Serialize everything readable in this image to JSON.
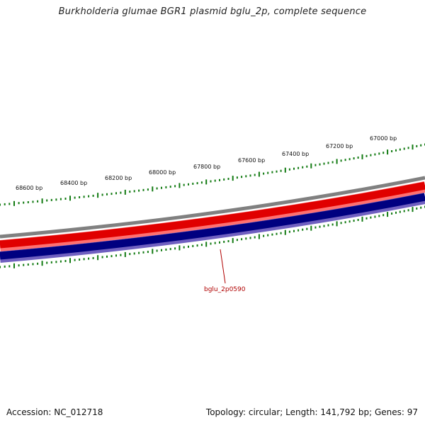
{
  "title": "Burkholderia glumae BGR1 plasmid bglu_2p, complete sequence",
  "ruler_labels": [
    "68600 bp",
    "68400 bp",
    "68200 bp",
    "68000 bp",
    "67800 bp",
    "67600 bp",
    "67400 bp",
    "67200 bp",
    "67000 bp"
  ],
  "gene_label": "bglu_2p0590",
  "footer": {
    "accession": "Accession: NC_012718",
    "info": "Topology: circular; Length: 141,792 bp; Genes: 97"
  },
  "colors": {
    "backbone": "#808080",
    "forward_strand": "#e00000",
    "forward_strand_light": "#ff7070",
    "reverse_strand": "#000080",
    "reverse_strand_light": "#7060c0",
    "ticks": "#117a11",
    "gene_label": "#b00000"
  }
}
